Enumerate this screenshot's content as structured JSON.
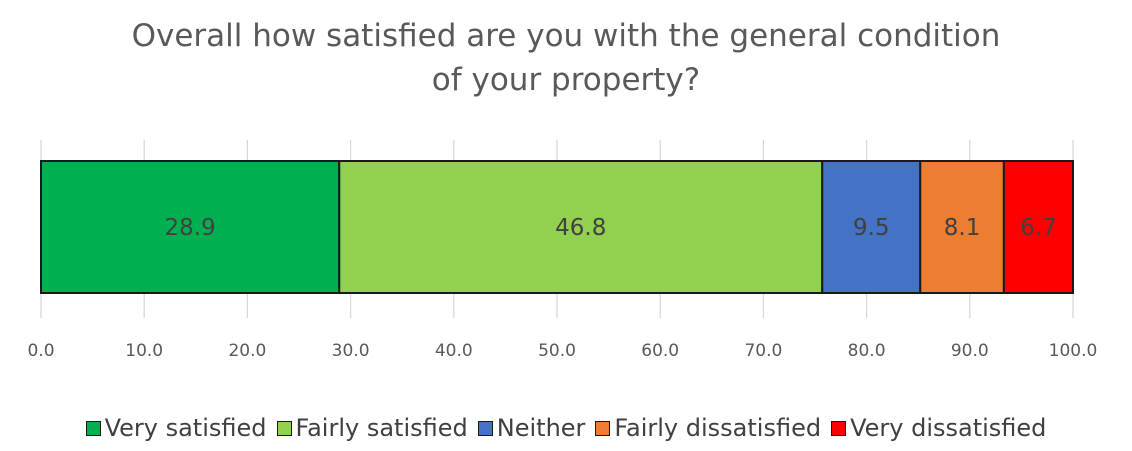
{
  "chart_data": {
    "type": "bar",
    "orientation": "horizontal",
    "stacked": true,
    "title": "Overall how satisfied are you with the general condition of your property?",
    "title_lines": [
      "Overall how satisfied are you with the general condition",
      "of your property?"
    ],
    "xlabel": "",
    "ylabel": "",
    "xlim": [
      0,
      100
    ],
    "x_ticks": [
      "0.0",
      "10.0",
      "20.0",
      "30.0",
      "40.0",
      "50.0",
      "60.0",
      "70.0",
      "80.0",
      "90.0",
      "100.0"
    ],
    "grid": "vertical",
    "legend_position": "bottom",
    "series": [
      {
        "name": "Very satisfied",
        "values": [
          28.9
        ],
        "label": "28.9",
        "color": "#00B050"
      },
      {
        "name": "Fairly satisfied",
        "values": [
          46.8
        ],
        "label": "46.8",
        "color": "#92D050"
      },
      {
        "name": "Neither",
        "values": [
          9.5
        ],
        "label": "9.5",
        "color": "#4472C4"
      },
      {
        "name": "Fairly dissatisfied",
        "values": [
          8.1
        ],
        "label": "8.1",
        "color": "#ED7D31"
      },
      {
        "name": "Very dissatisfied",
        "values": [
          6.7
        ],
        "label": "6.7",
        "color": "#FF0000"
      }
    ]
  }
}
